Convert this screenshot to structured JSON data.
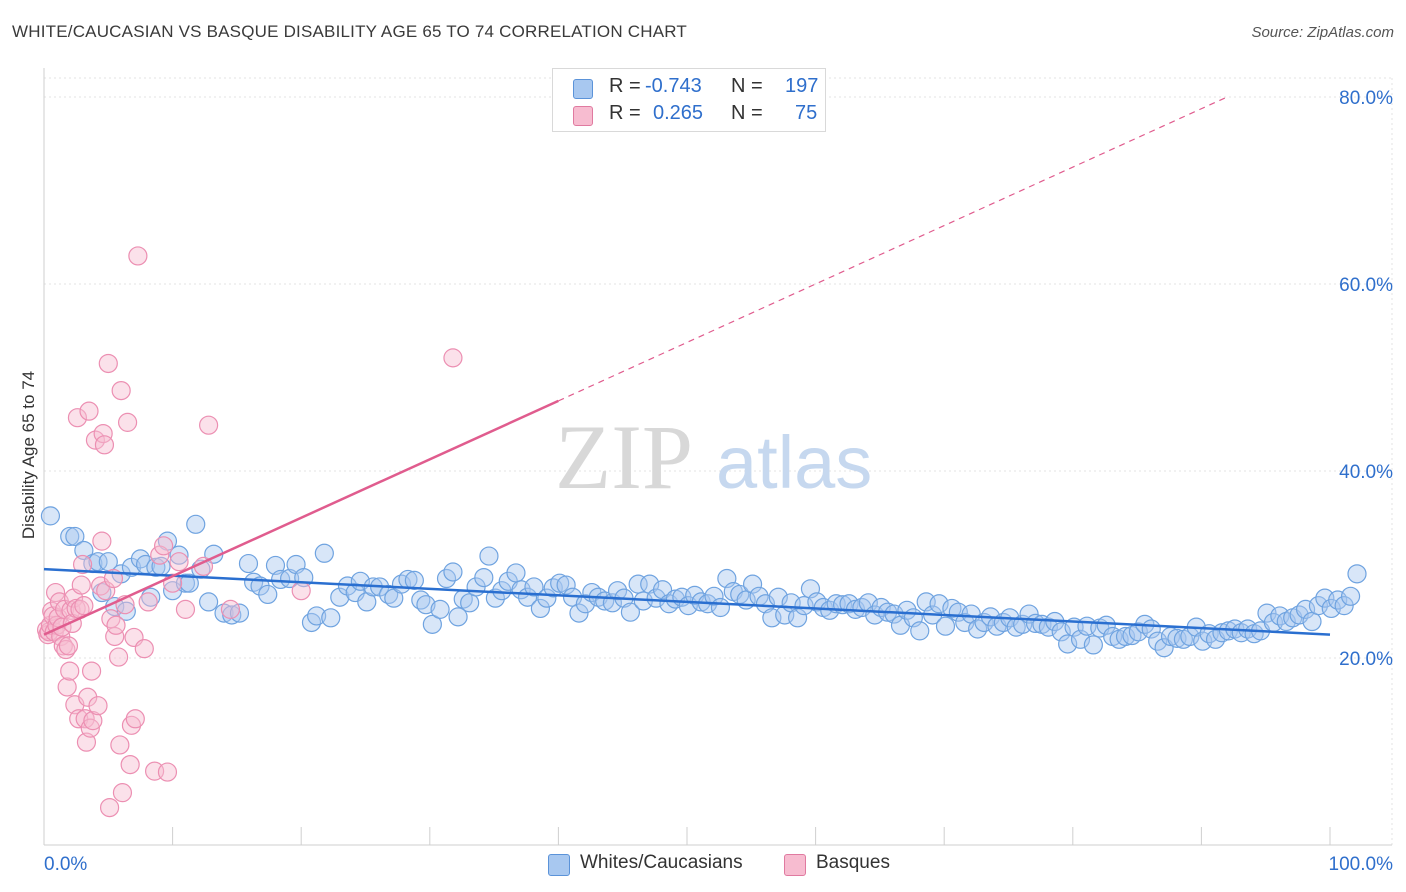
{
  "header": {
    "title": "WHITE/CAUCASIAN VS BASQUE DISABILITY AGE 65 TO 74 CORRELATION CHART",
    "source": "Source: ZipAtlas.com"
  },
  "legend": {
    "r_label": "R =",
    "n_label": "N =",
    "series": [
      {
        "r": "-0.743",
        "n": "197",
        "color": "#a8c8f0",
        "border": "#5b93d9"
      },
      {
        "r": "0.265",
        "n": "75",
        "color": "#f7bcd0",
        "border": "#e07aa0"
      }
    ]
  },
  "bottom_legend": [
    {
      "label": "Whites/Caucasians",
      "color": "#a8c8f0",
      "border": "#5b93d9"
    },
    {
      "label": "Basques",
      "color": "#f7bcd0",
      "border": "#e07aa0"
    }
  ],
  "watermark": {
    "part1": "ZIP",
    "part2": "atlas"
  },
  "chart_data": {
    "type": "scatter",
    "title": "WHITE/CAUCASIAN VS BASQUE DISABILITY AGE 65 TO 74 CORRELATION CHART",
    "xlabel": "",
    "ylabel": "Disability Age 65 to 74",
    "xlim": [
      0,
      100
    ],
    "ylim": [
      0,
      81
    ],
    "x_tick_labels": [
      {
        "value": 0,
        "label": "0.0%"
      },
      {
        "value": 100,
        "label": "100.0%"
      }
    ],
    "y_tick_labels": [
      {
        "value": 20,
        "label": "20.0%"
      },
      {
        "value": 40,
        "label": "40.0%"
      },
      {
        "value": 60,
        "label": "60.0%"
      },
      {
        "value": 80,
        "label": "80.0%"
      }
    ],
    "x_minor_ticks": [
      0,
      10,
      20,
      30,
      40,
      50,
      60,
      70,
      80,
      90,
      100
    ],
    "grid": true,
    "series": [
      {
        "name": "Whites/Caucasians",
        "color": "#6fa3e0",
        "trend": {
          "x0": 0,
          "y0": 29.5,
          "x1": 100,
          "y1": 22.5,
          "color": "#2a6fd0"
        },
        "points": [
          [
            0.5,
            35.2
          ],
          [
            2,
            33
          ],
          [
            2.4,
            33
          ],
          [
            3.1,
            31.5
          ],
          [
            3.8,
            30.1
          ],
          [
            4.2,
            30.3
          ],
          [
            4.5,
            27
          ],
          [
            5,
            30.3
          ],
          [
            5.5,
            25.5
          ],
          [
            6,
            29
          ],
          [
            6.4,
            25
          ],
          [
            6.8,
            29.7
          ],
          [
            7.5,
            30.6
          ],
          [
            7.9,
            30
          ],
          [
            8.3,
            26.5
          ],
          [
            8.7,
            29.7
          ],
          [
            9.1,
            29.8
          ],
          [
            9.6,
            32.5
          ],
          [
            10,
            27.2
          ],
          [
            10.5,
            31
          ],
          [
            11,
            28
          ],
          [
            11.3,
            28
          ],
          [
            11.8,
            34.3
          ],
          [
            12.2,
            29.5
          ],
          [
            12.8,
            26
          ],
          [
            13.2,
            31.1
          ],
          [
            14,
            24.8
          ],
          [
            14.6,
            24.6
          ],
          [
            15.2,
            24.8
          ],
          [
            15.9,
            30.1
          ],
          [
            16.3,
            28.1
          ],
          [
            16.8,
            27.7
          ],
          [
            17.4,
            26.8
          ],
          [
            18,
            29.9
          ],
          [
            18.4,
            28.4
          ],
          [
            19.1,
            28.5
          ],
          [
            19.6,
            30
          ],
          [
            20.2,
            28.6
          ],
          [
            20.8,
            23.8
          ],
          [
            21.2,
            24.5
          ],
          [
            21.8,
            31.2
          ],
          [
            22.3,
            24.3
          ],
          [
            23,
            26.5
          ],
          [
            23.6,
            27.7
          ],
          [
            24.2,
            27
          ],
          [
            24.6,
            28.2
          ],
          [
            25.1,
            26
          ],
          [
            25.6,
            27.6
          ],
          [
            26.1,
            27.6
          ],
          [
            26.8,
            26.8
          ],
          [
            27.2,
            26.4
          ],
          [
            27.8,
            27.9
          ],
          [
            28.3,
            28.4
          ],
          [
            28.8,
            28.3
          ],
          [
            29.3,
            26.2
          ],
          [
            29.7,
            25.7
          ],
          [
            30.2,
            23.6
          ],
          [
            30.8,
            25.2
          ],
          [
            31.3,
            28.5
          ],
          [
            31.8,
            29.2
          ],
          [
            32.2,
            24.4
          ],
          [
            32.6,
            26.3
          ],
          [
            33.1,
            25.9
          ],
          [
            33.6,
            27.6
          ],
          [
            34.2,
            28.6
          ],
          [
            34.6,
            30.9
          ],
          [
            35.1,
            26.4
          ],
          [
            35.6,
            27.2
          ],
          [
            36.1,
            28.2
          ],
          [
            36.7,
            29.1
          ],
          [
            37.1,
            27.3
          ],
          [
            37.6,
            26.5
          ],
          [
            38.1,
            27.6
          ],
          [
            38.6,
            25.3
          ],
          [
            39.1,
            26.4
          ],
          [
            39.6,
            27.5
          ],
          [
            40.1,
            28
          ],
          [
            40.6,
            27.8
          ],
          [
            41.1,
            26.5
          ],
          [
            41.6,
            24.8
          ],
          [
            42.1,
            25.8
          ],
          [
            42.6,
            27
          ],
          [
            43.1,
            26.5
          ],
          [
            43.6,
            26.1
          ],
          [
            44.2,
            25.9
          ],
          [
            44.6,
            27.2
          ],
          [
            45.1,
            26.4
          ],
          [
            45.6,
            24.9
          ],
          [
            46.2,
            27.9
          ],
          [
            46.6,
            26.1
          ],
          [
            47.1,
            27.9
          ],
          [
            47.6,
            26.4
          ],
          [
            48.1,
            27.3
          ],
          [
            48.6,
            25.8
          ],
          [
            49.1,
            26.3
          ],
          [
            49.6,
            26.5
          ],
          [
            50.1,
            25.6
          ],
          [
            50.6,
            26.7
          ],
          [
            51.1,
            26
          ],
          [
            51.6,
            25.8
          ],
          [
            52.1,
            26.6
          ],
          [
            52.6,
            25.4
          ],
          [
            53.1,
            28.5
          ],
          [
            53.6,
            27.1
          ],
          [
            54.1,
            26.8
          ],
          [
            54.6,
            26.2
          ],
          [
            55.1,
            27.9
          ],
          [
            55.6,
            26.6
          ],
          [
            56.1,
            25.8
          ],
          [
            56.6,
            24.3
          ],
          [
            57.1,
            26.5
          ],
          [
            57.6,
            24.6
          ],
          [
            58.1,
            25.9
          ],
          [
            58.6,
            24.3
          ],
          [
            59.1,
            25.6
          ],
          [
            59.6,
            27.4
          ],
          [
            60.1,
            26
          ],
          [
            60.6,
            25.4
          ],
          [
            61.1,
            25.1
          ],
          [
            61.6,
            25.8
          ],
          [
            62.1,
            25.7
          ],
          [
            62.6,
            25.8
          ],
          [
            63.1,
            25.2
          ],
          [
            63.6,
            25.4
          ],
          [
            64.1,
            25.9
          ],
          [
            64.6,
            24.6
          ],
          [
            65.1,
            25.4
          ],
          [
            65.6,
            24.9
          ],
          [
            66.1,
            24.7
          ],
          [
            66.6,
            23.5
          ],
          [
            67.1,
            25.1
          ],
          [
            67.6,
            24.3
          ],
          [
            68.1,
            22.9
          ],
          [
            68.6,
            26
          ],
          [
            69.1,
            24.6
          ],
          [
            69.6,
            25.8
          ],
          [
            70.1,
            23.4
          ],
          [
            70.6,
            25.3
          ],
          [
            71.1,
            24.9
          ],
          [
            71.6,
            23.8
          ],
          [
            72.1,
            24.7
          ],
          [
            72.6,
            23.1
          ],
          [
            73.1,
            23.8
          ],
          [
            73.6,
            24.4
          ],
          [
            74.1,
            23.4
          ],
          [
            74.6,
            23.8
          ],
          [
            75.1,
            24.3
          ],
          [
            75.6,
            23.3
          ],
          [
            76.1,
            23.6
          ],
          [
            76.6,
            24.7
          ],
          [
            77.1,
            23.7
          ],
          [
            77.6,
            23.6
          ],
          [
            78.1,
            23.3
          ],
          [
            78.6,
            23.9
          ],
          [
            79.1,
            22.8
          ],
          [
            79.6,
            21.5
          ],
          [
            80.1,
            23.3
          ],
          [
            80.6,
            22
          ],
          [
            81.1,
            23.4
          ],
          [
            81.6,
            21.4
          ],
          [
            82.1,
            23.2
          ],
          [
            82.6,
            23.5
          ],
          [
            83.1,
            22.3
          ],
          [
            83.6,
            22
          ],
          [
            84.1,
            22.3
          ],
          [
            84.6,
            22.4
          ],
          [
            85.1,
            22.8
          ],
          [
            85.6,
            23.6
          ],
          [
            86.1,
            23.1
          ],
          [
            86.6,
            21.8
          ],
          [
            87.1,
            21.1
          ],
          [
            87.6,
            22.3
          ],
          [
            88.1,
            22.1
          ],
          [
            88.6,
            22
          ],
          [
            89.1,
            22.3
          ],
          [
            89.6,
            23.3
          ],
          [
            90.1,
            21.8
          ],
          [
            90.6,
            22.6
          ],
          [
            91.1,
            22
          ],
          [
            91.6,
            22.7
          ],
          [
            92.1,
            22.9
          ],
          [
            92.6,
            23.1
          ],
          [
            93.1,
            22.7
          ],
          [
            93.6,
            23.1
          ],
          [
            94.1,
            22.6
          ],
          [
            94.6,
            22.9
          ],
          [
            95.1,
            24.8
          ],
          [
            95.6,
            23.8
          ],
          [
            96.1,
            24.5
          ],
          [
            96.6,
            23.9
          ],
          [
            97.1,
            24.3
          ],
          [
            97.6,
            24.6
          ],
          [
            98.1,
            25.2
          ],
          [
            98.6,
            23.9
          ],
          [
            99.1,
            25.6
          ],
          [
            99.6,
            26.4
          ],
          [
            100.1,
            25.3
          ],
          [
            100.6,
            26.2
          ],
          [
            101.1,
            25.6
          ],
          [
            101.6,
            26.6
          ],
          [
            102.1,
            29
          ]
        ]
      },
      {
        "name": "Basques",
        "color": "#f08cb0",
        "trend": {
          "x0": 0,
          "y0": 22.5,
          "x1": 40,
          "y1": 47.5,
          "color": "#e05c8e",
          "dashed_to": {
            "x": 92,
            "y": 80
          }
        },
        "points": [
          [
            0.2,
            23
          ],
          [
            0.3,
            22.5
          ],
          [
            0.4,
            22.8
          ],
          [
            0.5,
            23.5
          ],
          [
            0.6,
            25
          ],
          [
            0.7,
            24.5
          ],
          [
            0.8,
            22.8
          ],
          [
            0.9,
            27
          ],
          [
            1,
            23.5
          ],
          [
            1.1,
            24.3
          ],
          [
            1.2,
            26
          ],
          [
            1.3,
            22.3
          ],
          [
            1.4,
            23.3
          ],
          [
            1.5,
            21.3
          ],
          [
            1.6,
            25.2
          ],
          [
            1.7,
            20.9
          ],
          [
            1.8,
            16.9
          ],
          [
            1.9,
            21.3
          ],
          [
            2,
            18.6
          ],
          [
            2.1,
            25.1
          ],
          [
            2.2,
            23.7
          ],
          [
            2.3,
            26.4
          ],
          [
            2.4,
            15
          ],
          [
            2.5,
            25.3
          ],
          [
            2.6,
            45.7
          ],
          [
            2.7,
            13.5
          ],
          [
            2.8,
            25.2
          ],
          [
            2.9,
            27.8
          ],
          [
            3,
            30
          ],
          [
            3.1,
            25.6
          ],
          [
            3.2,
            13.5
          ],
          [
            3.3,
            11
          ],
          [
            3.4,
            15.8
          ],
          [
            3.5,
            46.4
          ],
          [
            3.6,
            12.5
          ],
          [
            3.7,
            18.6
          ],
          [
            3.8,
            13.3
          ],
          [
            4,
            43.3
          ],
          [
            4.2,
            14.9
          ],
          [
            4.4,
            27.7
          ],
          [
            4.5,
            32.5
          ],
          [
            4.6,
            44
          ],
          [
            4.7,
            42.8
          ],
          [
            4.8,
            27.2
          ],
          [
            5,
            51.5
          ],
          [
            5.1,
            4
          ],
          [
            5.2,
            24.2
          ],
          [
            5.4,
            28.5
          ],
          [
            5.5,
            22.3
          ],
          [
            5.6,
            23.5
          ],
          [
            5.8,
            20.1
          ],
          [
            5.9,
            10.7
          ],
          [
            6,
            48.6
          ],
          [
            6.1,
            5.6
          ],
          [
            6.3,
            25.7
          ],
          [
            6.5,
            45.2
          ],
          [
            6.7,
            8.6
          ],
          [
            6.8,
            12.8
          ],
          [
            7,
            22.2
          ],
          [
            7.1,
            13.5
          ],
          [
            7.3,
            63
          ],
          [
            7.8,
            21
          ],
          [
            8.1,
            26
          ],
          [
            8.6,
            7.9
          ],
          [
            9,
            31
          ],
          [
            9.3,
            32
          ],
          [
            9.6,
            7.8
          ],
          [
            10,
            28
          ],
          [
            10.5,
            30.3
          ],
          [
            11,
            25.2
          ],
          [
            12.4,
            29.8
          ],
          [
            12.8,
            44.9
          ],
          [
            14.5,
            25.2
          ],
          [
            20,
            27.2
          ],
          [
            31.8,
            52.1
          ]
        ]
      }
    ]
  }
}
